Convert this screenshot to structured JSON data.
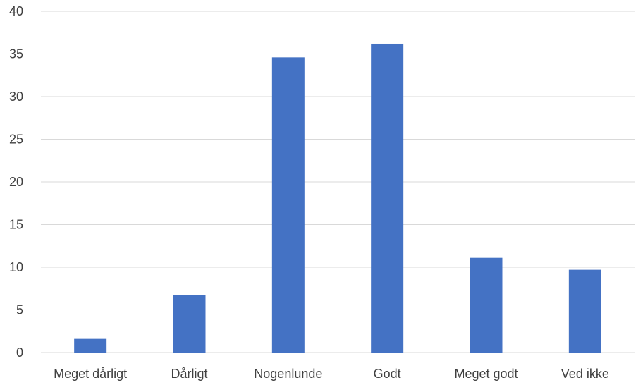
{
  "chart_data": {
    "type": "bar",
    "title": "",
    "xlabel": "",
    "ylabel": "",
    "categories": [
      "Meget dårligt",
      "Dårligt",
      "Nogenlunde",
      "Godt",
      "Meget godt",
      "Ved ikke"
    ],
    "values": [
      1.6,
      6.7,
      34.6,
      36.2,
      11.1,
      9.7
    ],
    "ylim": [
      0,
      40
    ],
    "yticks": [
      0,
      5,
      10,
      15,
      20,
      25,
      30,
      35,
      40
    ],
    "grid": true,
    "legend": "none",
    "bar_color": "#4472c4"
  }
}
